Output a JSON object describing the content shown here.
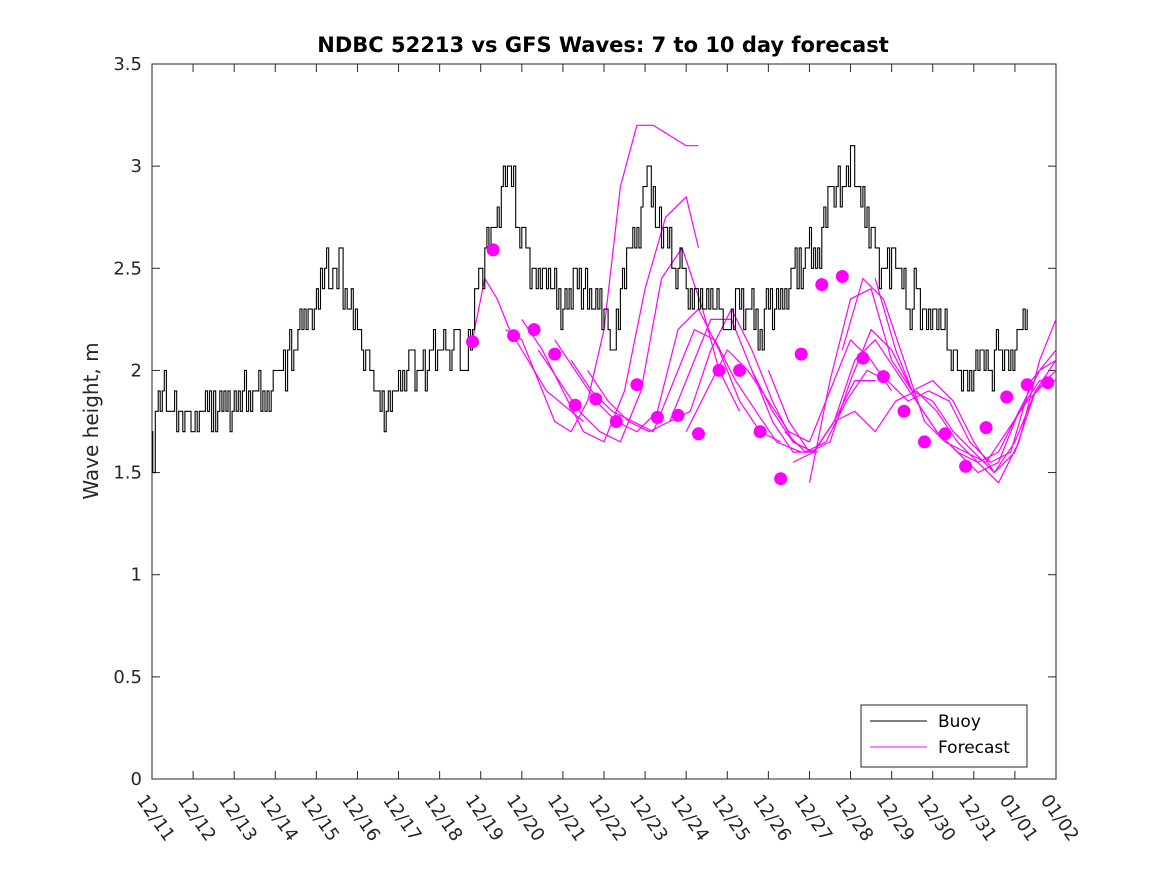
{
  "chart_data": {
    "type": "line",
    "title": "NDBC 52213 vs GFS Waves: 7 to 10 day forecast",
    "xlabel": "",
    "ylabel": "Wave height, m",
    "xlim": [
      0,
      22
    ],
    "ylim": [
      0,
      3.5
    ],
    "grid": false,
    "legend_position": "bottom-right",
    "colors": {
      "buoy": "#000000",
      "forecast": "#ff00ff",
      "axis": "#262626"
    },
    "x_tick_labels": [
      "12/11",
      "12/12",
      "12/13",
      "12/14",
      "12/15",
      "12/16",
      "12/17",
      "12/18",
      "12/19",
      "12/20",
      "12/21",
      "12/22",
      "12/23",
      "12/24",
      "12/25",
      "12/26",
      "12/27",
      "12/28",
      "12/29",
      "12/30",
      "12/31",
      "01/01",
      "01/02"
    ],
    "y_ticks": [
      0,
      0.5,
      1,
      1.5,
      2,
      2.5,
      3,
      3.5
    ],
    "y_tick_labels": [
      "0",
      "0.5",
      "1",
      "1.5",
      "2",
      "2.5",
      "3",
      "3.5"
    ],
    "legend": [
      {
        "name": "Buoy",
        "color": "#000000"
      },
      {
        "name": "Forecast",
        "color": "#ff00ff"
      }
    ],
    "buoy": {
      "name": "Buoy",
      "x": [
        0,
        0.02,
        0.08,
        0.15,
        0.2,
        0.3,
        0.35,
        0.45,
        0.5,
        0.6,
        0.7,
        0.8,
        0.9,
        1.0,
        1.2,
        1.5,
        1.8,
        2.0,
        2.2,
        2.5,
        2.8,
        3.0,
        3.1,
        3.3,
        3.5,
        3.7,
        3.9,
        4.0,
        4.2,
        4.3,
        4.45,
        4.55,
        4.7,
        4.8,
        5.0,
        5.1,
        5.3,
        5.5,
        5.7,
        5.9,
        6.1,
        6.3,
        6.5,
        6.8,
        7.0,
        7.2,
        7.4,
        7.6,
        7.8,
        7.9,
        8.0,
        8.1,
        8.3,
        8.5,
        8.7,
        8.9,
        9.1,
        9.3,
        9.5,
        9.7,
        9.9,
        10.1,
        10.3,
        10.5,
        10.7,
        10.9,
        11.1,
        11.2,
        11.4,
        11.6,
        11.8,
        12.0,
        12.1,
        12.3,
        12.5,
        12.7,
        12.9,
        13.0,
        13.2,
        13.4,
        13.6,
        13.8,
        14.0,
        14.2,
        14.5,
        14.8,
        15.0,
        15.3,
        15.6,
        15.9,
        16.2,
        16.5,
        16.8,
        17.0,
        17.2,
        17.4,
        17.6,
        17.8,
        18.0,
        18.2,
        18.4,
        18.6,
        18.8,
        19.0,
        19.2,
        19.4,
        19.6,
        19.8,
        20.0,
        20.2,
        20.4,
        20.6,
        20.8,
        21.0,
        21.1,
        21.3
      ],
      "values": [
        1.7,
        1.5,
        1.75,
        1.9,
        1.8,
        1.95,
        1.8,
        1.75,
        1.8,
        1.7,
        1.8,
        1.75,
        1.8,
        1.7,
        1.8,
        1.85,
        1.8,
        1.85,
        1.9,
        1.85,
        1.9,
        1.95,
        2.0,
        2.05,
        2.1,
        2.3,
        2.2,
        2.35,
        2.5,
        2.4,
        2.45,
        2.6,
        2.35,
        2.3,
        2.2,
        2.1,
        2.0,
        1.9,
        1.75,
        1.85,
        2.0,
        2.05,
        2.0,
        2.05,
        2.1,
        2.1,
        2.15,
        2.0,
        2.2,
        2.4,
        2.5,
        2.6,
        2.7,
        2.85,
        3.0,
        2.7,
        2.6,
        2.5,
        2.45,
        2.4,
        2.35,
        2.3,
        2.5,
        2.4,
        2.3,
        2.4,
        2.15,
        2.05,
        2.4,
        2.55,
        2.7,
        2.85,
        2.95,
        2.7,
        2.65,
        2.5,
        2.45,
        2.4,
        2.35,
        2.3,
        2.4,
        2.3,
        2.2,
        2.35,
        2.3,
        2.2,
        2.3,
        2.35,
        2.45,
        2.55,
        2.6,
        2.85,
        2.9,
        3.05,
        2.85,
        2.75,
        2.6,
        2.5,
        2.55,
        2.45,
        2.3,
        2.4,
        2.3,
        2.25,
        2.2,
        2.1,
        2.0,
        1.95,
        1.95,
        2.05,
        2.0,
        2.1,
        2.05,
        2.1,
        2.15,
        2.3
      ]
    },
    "forecast": [
      {
        "x": [
          7.8,
          8.1,
          8.4,
          8.7,
          9.0,
          9.3,
          9.6,
          9.9,
          10.2,
          10.5
        ],
        "values": [
          2.15,
          2.45,
          2.35,
          2.2,
          2.1,
          2.0,
          1.9,
          1.85,
          1.8,
          1.75
        ]
      },
      {
        "x": [
          8.6,
          9.0,
          9.4,
          9.8,
          10.2,
          10.6,
          11.0,
          11.4,
          11.8,
          12.2,
          12.6,
          13.0,
          13.3
        ],
        "values": [
          2.2,
          2.15,
          1.95,
          1.75,
          1.7,
          1.85,
          2.2,
          2.9,
          3.2,
          3.2,
          3.15,
          3.1,
          3.1
        ]
      },
      {
        "x": [
          9.0,
          9.5,
          10.0,
          10.5,
          11.0,
          11.5,
          12.0,
          12.5,
          13.0,
          13.3
        ],
        "values": [
          2.25,
          2.1,
          1.9,
          1.7,
          1.65,
          1.9,
          2.4,
          2.75,
          2.85,
          2.6
        ]
      },
      {
        "x": [
          9.4,
          9.9,
          10.4,
          10.9,
          11.4,
          11.9,
          12.4,
          12.9,
          13.4,
          13.8,
          14.3
        ],
        "values": [
          2.1,
          1.95,
          1.8,
          1.7,
          1.65,
          1.9,
          2.45,
          2.6,
          2.3,
          2.0,
          1.8
        ]
      },
      {
        "x": [
          9.8,
          10.3,
          10.8,
          11.3,
          11.8,
          12.3,
          12.8,
          13.3,
          13.8,
          14.3,
          14.8,
          15.3
        ],
        "values": [
          2.15,
          2.0,
          1.85,
          1.75,
          1.7,
          1.8,
          2.2,
          2.3,
          2.1,
          1.85,
          1.7,
          1.65
        ]
      },
      {
        "x": [
          10.2,
          10.7,
          11.2,
          11.7,
          12.2,
          12.7,
          13.2,
          13.7,
          14.2,
          14.7,
          15.2,
          15.8
        ],
        "values": [
          2.05,
          1.9,
          1.8,
          1.75,
          1.7,
          1.95,
          2.2,
          2.15,
          1.95,
          1.8,
          1.65,
          1.6
        ]
      },
      {
        "x": [
          10.6,
          11.1,
          11.6,
          12.1,
          12.6,
          13.1,
          13.6,
          14.1,
          14.6,
          15.1,
          15.6,
          16.2
        ],
        "values": [
          2.0,
          1.85,
          1.75,
          1.7,
          1.75,
          2.0,
          2.25,
          2.25,
          2.0,
          1.75,
          1.6,
          1.6
        ]
      },
      {
        "x": [
          12.6,
          13.1,
          13.6,
          14.1,
          14.6,
          15.1,
          15.6,
          16.1,
          16.6,
          17.1,
          17.6
        ],
        "values": [
          1.75,
          1.8,
          2.1,
          2.3,
          2.1,
          1.85,
          1.65,
          1.6,
          1.75,
          1.95,
          1.95
        ]
      },
      {
        "x": [
          13.0,
          13.5,
          14.0,
          14.5,
          15.0,
          15.5,
          16.0,
          16.5,
          17.0,
          17.5,
          18.0
        ],
        "values": [
          1.7,
          1.9,
          2.1,
          2.0,
          1.85,
          1.7,
          1.65,
          1.9,
          2.15,
          2.05,
          1.9
        ]
      },
      {
        "x": [
          14.6,
          15.1,
          15.6,
          16.1,
          16.6,
          17.1,
          17.6,
          18.1,
          18.6,
          19.1,
          19.6,
          20.1,
          20.6,
          21.1,
          21.6,
          22.0
        ],
        "values": [
          2.0,
          1.8,
          1.65,
          1.6,
          1.75,
          2.05,
          2.15,
          2.0,
          1.85,
          1.7,
          1.6,
          1.55,
          1.6,
          1.8,
          2.0,
          2.05
        ]
      },
      {
        "x": [
          15.0,
          15.5,
          16.0,
          16.5,
          17.0,
          17.5,
          18.0,
          18.5,
          19.0,
          19.5,
          20.0,
          20.5,
          21.0,
          21.5,
          22.0
        ],
        "values": [
          2.0,
          1.75,
          1.6,
          1.65,
          1.95,
          2.2,
          2.1,
          1.9,
          1.85,
          1.7,
          1.6,
          1.5,
          1.65,
          1.9,
          2.05
        ]
      },
      {
        "x": [
          15.4,
          15.9,
          16.4,
          16.9,
          17.4,
          17.9,
          18.4,
          18.9,
          19.4,
          19.9,
          20.4,
          20.9,
          21.4,
          22.0
        ],
        "values": [
          1.7,
          1.6,
          1.65,
          1.85,
          2.0,
          1.95,
          1.85,
          1.9,
          1.85,
          1.65,
          1.55,
          1.6,
          1.95,
          2.1
        ]
      },
      {
        "x": [
          15.6,
          16.1,
          16.6,
          17.1,
          17.6,
          18.1,
          18.6,
          19.1,
          19.6,
          20.1,
          20.6,
          21.1,
          21.6,
          22.0
        ],
        "values": [
          1.55,
          1.6,
          1.75,
          1.8,
          1.7,
          1.85,
          1.9,
          1.8,
          1.65,
          1.55,
          1.45,
          1.65,
          2.05,
          2.25
        ]
      },
      {
        "x": [
          16.0,
          16.5,
          17.0,
          17.5,
          18.0,
          18.5,
          19.0,
          19.5,
          20.0,
          20.5,
          21.0,
          21.5,
          22.0
        ],
        "values": [
          1.45,
          1.95,
          2.35,
          2.4,
          2.05,
          1.9,
          1.95,
          1.85,
          1.65,
          1.5,
          1.6,
          1.9,
          2.0
        ]
      },
      {
        "x": [
          16.8,
          17.3,
          17.8,
          18.3,
          18.8,
          19.3,
          19.8,
          20.3,
          20.8,
          21.3,
          21.8,
          22.0
        ],
        "values": [
          2.1,
          2.45,
          2.35,
          2.05,
          1.75,
          1.65,
          1.6,
          1.55,
          1.7,
          1.85,
          1.95,
          1.95
        ]
      },
      {
        "x": [
          17.6,
          18.1,
          18.6,
          19.1,
          19.6,
          20.1,
          20.6,
          21.1,
          21.6,
          22.0
        ],
        "values": [
          2.45,
          2.1,
          1.85,
          1.7,
          1.6,
          1.5,
          1.55,
          1.8,
          1.95,
          1.95
        ]
      }
    ],
    "forecast_points": {
      "x": [
        7.8,
        8.3,
        8.8,
        9.3,
        9.8,
        10.3,
        10.8,
        11.3,
        11.8,
        12.3,
        12.8,
        13.3,
        13.8,
        14.3,
        14.8,
        15.3,
        15.8,
        16.3,
        16.8,
        17.3,
        17.8,
        18.3,
        18.8,
        19.3,
        19.8,
        20.3,
        20.8,
        21.3,
        21.8
      ],
      "values": [
        2.14,
        2.59,
        2.17,
        2.2,
        2.08,
        1.83,
        1.86,
        1.75,
        1.93,
        1.77,
        1.78,
        1.69,
        2.0,
        2.0,
        1.7,
        1.47,
        2.08,
        2.42,
        2.46,
        2.06,
        1.97,
        1.8,
        1.65,
        1.69,
        1.53,
        1.72,
        1.87,
        1.93,
        1.94
      ]
    }
  }
}
